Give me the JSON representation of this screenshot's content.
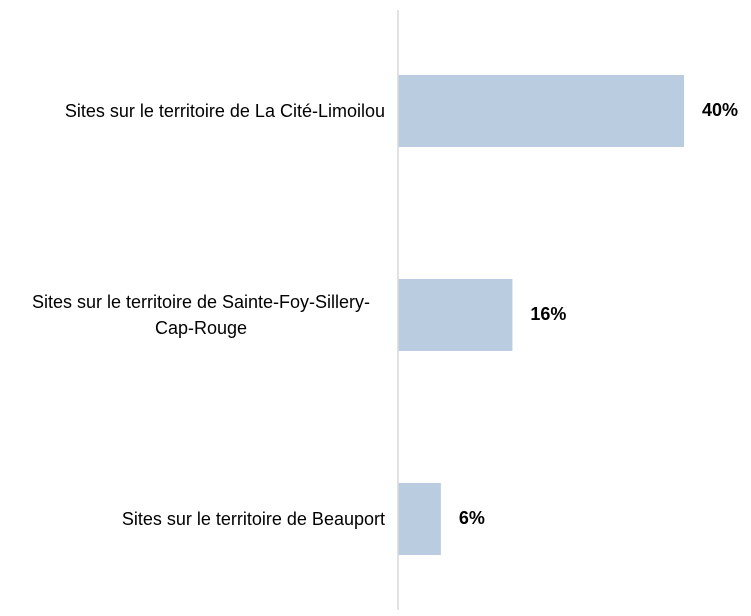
{
  "chart_data": {
    "type": "bar",
    "orientation": "horizontal",
    "categories": [
      "Sites sur le territoire de La Cité-Limoilou",
      "Sites sur le territoire de Sainte-Foy-Sillery-Cap-Rouge",
      "Sites sur le territoire de Beauport"
    ],
    "values": [
      40,
      16,
      6
    ],
    "value_labels": [
      "40%",
      "16%",
      "6%"
    ],
    "color": "#bacde0",
    "xlim": [
      0,
      45
    ]
  }
}
